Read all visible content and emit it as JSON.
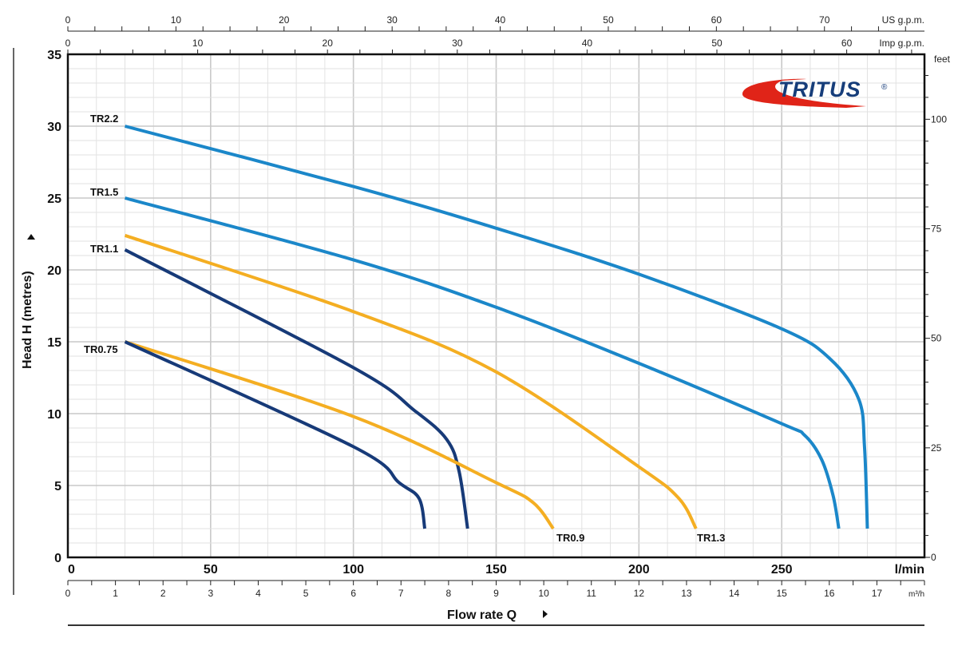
{
  "chart_data": {
    "type": "line",
    "logo": "TRITUS®",
    "xlabel": "Flow rate Q",
    "ylabel": "Head H (metres)",
    "x_unit": "l/min",
    "xlim": [
      0,
      300
    ],
    "ylim": [
      0,
      35
    ],
    "x_ticks": [
      0,
      50,
      100,
      150,
      200,
      250
    ],
    "y_ticks": [
      0,
      5,
      10,
      15,
      20,
      25,
      30,
      35
    ],
    "grid": true,
    "secondary_axes": {
      "us_gpm": {
        "label": "US g.p.m.",
        "ticks": [
          0,
          10,
          20,
          30,
          40,
          50,
          60,
          70
        ]
      },
      "imp_gpm": {
        "label": "Imp g.p.m.",
        "ticks": [
          0,
          10,
          20,
          30,
          40,
          50,
          60
        ]
      },
      "m3h": {
        "label": "m³/h",
        "ticks": [
          0,
          1,
          2,
          3,
          4,
          5,
          6,
          7,
          8,
          9,
          10,
          11,
          12,
          13,
          14,
          15,
          16,
          17
        ]
      },
      "feet": {
        "label": "feet",
        "ticks": [
          0,
          25,
          50,
          75,
          100
        ]
      }
    },
    "series": [
      {
        "name": "TR2.2",
        "color": "#1b87c9",
        "x": [
          20,
          100,
          150,
          200,
          250,
          267,
          277,
          279,
          280
        ],
        "y": [
          30,
          25.8,
          22.9,
          19.7,
          15.9,
          13.8,
          11,
          7.7,
          2
        ]
      },
      {
        "name": "TR1.5",
        "color": "#1b87c9",
        "x": [
          20,
          100,
          150,
          200,
          250,
          258,
          264,
          268,
          270
        ],
        "y": [
          25,
          20.7,
          17.4,
          13.5,
          9.3,
          8.5,
          6.8,
          4.3,
          2
        ]
      },
      {
        "name": "TR1.3",
        "color": "#f4ae22",
        "x": [
          20,
          100,
          150,
          200,
          214,
          220
        ],
        "y": [
          22.4,
          17.1,
          12.9,
          6.3,
          4.1,
          2
        ]
      },
      {
        "name": "TR1.1",
        "color": "#173a78",
        "x": [
          20,
          100,
          121.5,
          132.7,
          137,
          140
        ],
        "y": [
          21.4,
          13.2,
          10.2,
          8.2,
          6,
          2
        ]
      },
      {
        "name": "TR0.9",
        "color": "#f4ae22",
        "x": [
          20,
          100,
          150,
          163,
          170
        ],
        "y": [
          15,
          9.8,
          5.2,
          3.8,
          2
        ]
      },
      {
        "name": "TR0.75",
        "color": "#173a78",
        "x": [
          20,
          100,
          116,
          123,
          125
        ],
        "y": [
          15,
          7.7,
          5.2,
          4.1,
          2
        ]
      }
    ]
  }
}
